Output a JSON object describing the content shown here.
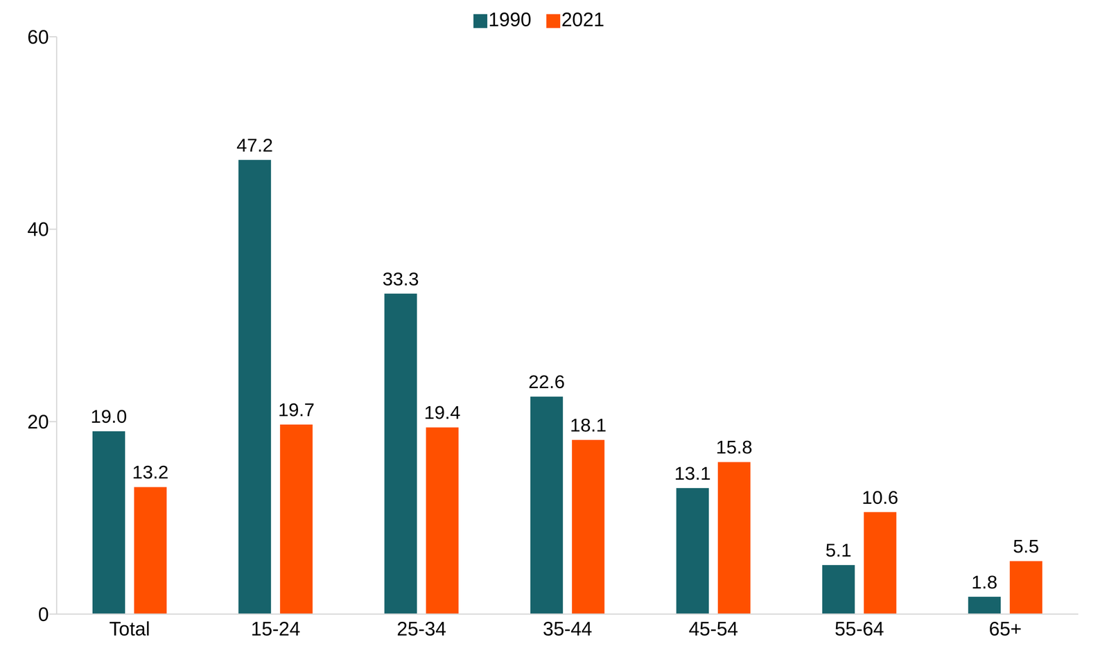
{
  "chart_data": {
    "type": "bar",
    "categories": [
      "Total",
      "15-24",
      "25-34",
      "35-44",
      "45-54",
      "55-64",
      "65+"
    ],
    "series": [
      {
        "name": "1990",
        "color": "#17636b",
        "values": [
          19.0,
          47.2,
          33.3,
          22.6,
          13.1,
          5.1,
          1.8
        ],
        "value_labels": [
          "19.0",
          "47.2",
          "33.3",
          "22.6",
          "13.1",
          "5.1",
          "1.8"
        ]
      },
      {
        "name": "2021",
        "color": "#ff5000",
        "values": [
          13.2,
          19.7,
          19.4,
          18.1,
          15.8,
          10.6,
          5.5
        ],
        "value_labels": [
          "13.2",
          "19.7",
          "19.4",
          "18.1",
          "15.8",
          "10.6",
          "5.5"
        ]
      }
    ],
    "ylim": [
      0,
      60
    ],
    "yticks": [
      0,
      20,
      40,
      60
    ],
    "grid": false,
    "legend": "top",
    "data_labels": true
  }
}
